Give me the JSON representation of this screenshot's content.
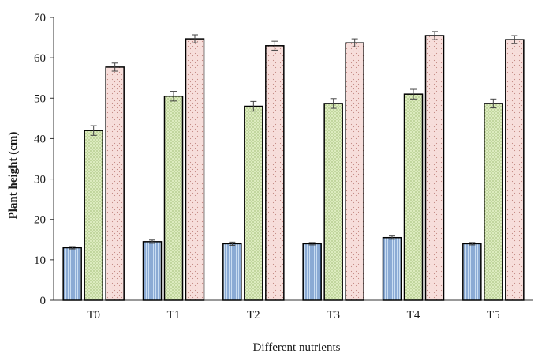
{
  "chart_data": {
    "type": "bar",
    "title": "",
    "xlabel": "Different nutrients",
    "ylabel": "Plant height (cm)",
    "ylim": [
      0,
      70
    ],
    "yticks": [
      0,
      10,
      20,
      30,
      40,
      50,
      60,
      70
    ],
    "categories": [
      "T0",
      "T1",
      "T2",
      "T3",
      "T4",
      "T5"
    ],
    "series": [
      {
        "values": [
          13.0,
          14.5,
          14.0,
          14.0,
          15.5,
          14.0
        ],
        "errors": [
          0.3,
          0.4,
          0.4,
          0.3,
          0.4,
          0.3
        ],
        "color": "#9dc3e6",
        "pattern": "vertical-lines"
      },
      {
        "values": [
          42.0,
          50.5,
          48.0,
          48.7,
          51.0,
          48.7
        ],
        "errors": [
          1.2,
          1.2,
          1.2,
          1.2,
          1.2,
          1.1
        ],
        "color": "#d5e8b4",
        "pattern": "dots"
      },
      {
        "values": [
          57.7,
          64.7,
          63.0,
          63.7,
          65.5,
          64.5
        ],
        "errors": [
          1.0,
          1.0,
          1.1,
          1.0,
          1.0,
          1.0
        ],
        "color": "#f6d5d2",
        "pattern": "sparse-dots"
      }
    ],
    "grid": false,
    "legend": "none"
  }
}
